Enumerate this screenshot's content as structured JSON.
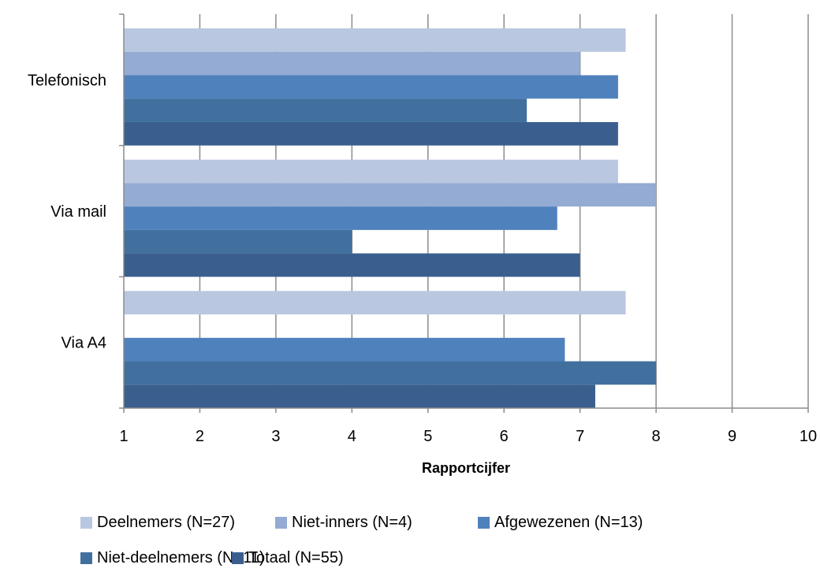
{
  "chart_data": {
    "type": "bar",
    "orientation": "horizontal",
    "categories": [
      "Telefonisch",
      "Via mail",
      "Via A4"
    ],
    "series": [
      {
        "name": "Deelnemers (N=27)",
        "color": "#b9c7e1",
        "values": [
          7.6,
          7.5,
          7.6
        ]
      },
      {
        "name": "Niet-inners (N=4)",
        "color": "#94abd3",
        "values": [
          7.0,
          8.0,
          null
        ]
      },
      {
        "name": "Afgewezenen (N=13)",
        "color": "#4f81bd",
        "values": [
          7.5,
          6.7,
          6.8
        ]
      },
      {
        "name": "Niet-deelnemers (N=11)",
        "color": "#41709f",
        "values": [
          6.3,
          4.0,
          8.0
        ]
      },
      {
        "name": "Totaal (N=55)",
        "color": "#3a5f8f",
        "values": [
          7.5,
          7.0,
          7.2
        ]
      }
    ],
    "xlim": [
      1,
      10
    ],
    "xticks": [
      "1",
      "2",
      "3",
      "4",
      "5",
      "6",
      "7",
      "8",
      "9",
      "10"
    ],
    "xlabel": "Rapportcijfer",
    "ylabel": "",
    "title": "",
    "grid": "vertical",
    "legend": "bottom"
  }
}
